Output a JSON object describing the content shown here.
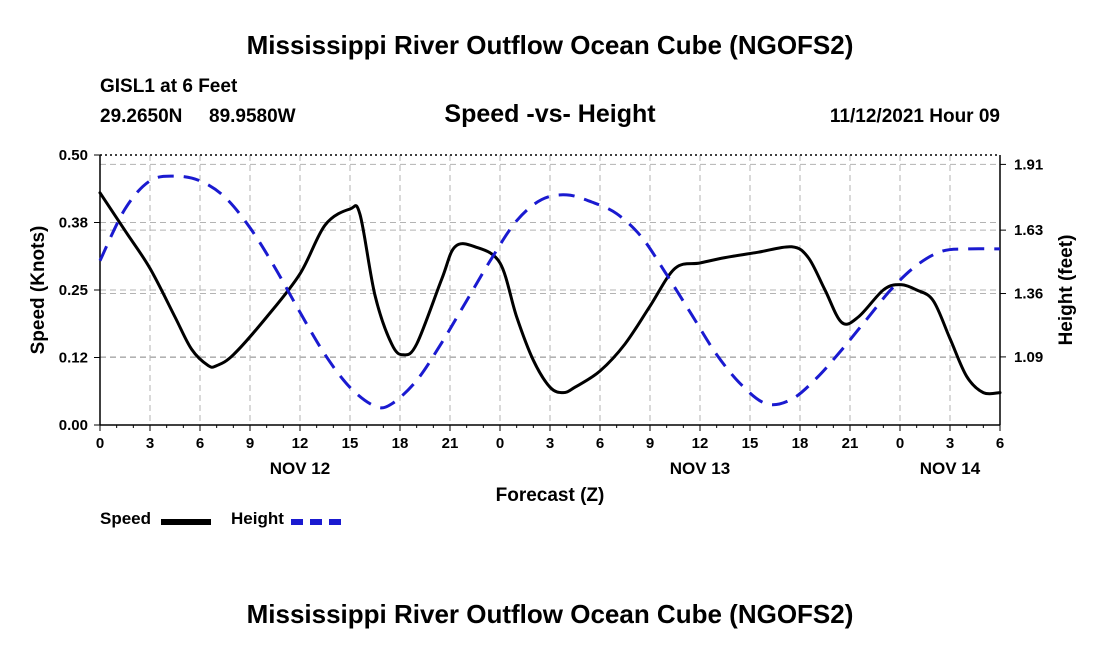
{
  "page_title": "Mississippi River Outflow Ocean Cube (NGOFS2)",
  "station": {
    "name": "GISL1 at 6 Feet",
    "lat": "29.2650N",
    "lon": "89.9580W"
  },
  "timestamp": "11/12/2021 Hour 09",
  "chart_data": {
    "type": "line",
    "title": "Speed -vs- Height",
    "xlabel": "Forecast (Z)",
    "ylabel_left": "Speed (Knots)",
    "ylabel_right": "Height (feet)",
    "x_range_hours": [
      0,
      54
    ],
    "x_tick_labels": [
      "0",
      "3",
      "6",
      "9",
      "12",
      "15",
      "18",
      "21",
      "0",
      "3",
      "6",
      "9",
      "12",
      "15",
      "18",
      "21",
      "0",
      "3",
      "6"
    ],
    "date_labels": [
      {
        "label": "NOV 12",
        "hour": 12
      },
      {
        "label": "NOV 13",
        "hour": 36
      },
      {
        "label": "NOV 14",
        "hour": 51
      }
    ],
    "ylim_left": [
      0,
      0.5
    ],
    "yticks_left": [
      "0.00",
      "0.12",
      "0.25",
      "0.38",
      "0.50"
    ],
    "ylim_right": [
      0.8,
      1.95
    ],
    "yticks_right": [
      "1.09",
      "1.36",
      "1.63",
      "1.91"
    ],
    "grid": true,
    "series": [
      {
        "name": "Speed",
        "axis": "left",
        "color": "#000000",
        "style": "solid",
        "x": [
          0,
          1.5,
          3,
          4.5,
          5.5,
          6.5,
          7,
          8,
          10,
          12,
          13.5,
          15,
          15.6,
          16.5,
          17.5,
          18.2,
          19,
          20.5,
          21.3,
          22.5,
          24,
          25,
          26,
          27,
          27.8,
          28.5,
          30,
          31.5,
          33,
          34.5,
          36,
          37.5,
          39.5,
          41.5,
          42.5,
          43.5,
          44.5,
          45.5,
          47,
          48,
          49,
          50,
          51,
          52,
          53,
          54
        ],
        "values": [
          0.43,
          0.36,
          0.29,
          0.2,
          0.14,
          0.11,
          0.11,
          0.13,
          0.2,
          0.28,
          0.37,
          0.4,
          0.39,
          0.24,
          0.15,
          0.13,
          0.15,
          0.27,
          0.33,
          0.33,
          0.3,
          0.2,
          0.12,
          0.07,
          0.06,
          0.07,
          0.1,
          0.15,
          0.22,
          0.29,
          0.3,
          0.31,
          0.32,
          0.33,
          0.31,
          0.25,
          0.19,
          0.2,
          0.25,
          0.26,
          0.25,
          0.23,
          0.16,
          0.09,
          0.06,
          0.06
        ]
      },
      {
        "name": "Height",
        "axis": "right",
        "color": "#1a1ad0",
        "style": "dashed",
        "x": [
          0,
          1.5,
          3,
          4.5,
          6,
          7.5,
          9,
          10.5,
          12,
          13.5,
          15,
          16.5,
          17.5,
          19,
          20.5,
          22,
          23.5,
          25,
          26.5,
          28,
          29.5,
          31,
          32.5,
          34,
          35.5,
          37,
          38.5,
          40,
          41.5,
          43,
          44.5,
          46,
          47.5,
          49,
          50.5,
          52,
          54
        ],
        "values": [
          1.5,
          1.72,
          1.84,
          1.86,
          1.84,
          1.77,
          1.64,
          1.47,
          1.28,
          1.1,
          0.96,
          0.88,
          0.89,
          0.99,
          1.15,
          1.33,
          1.51,
          1.67,
          1.76,
          1.78,
          1.75,
          1.7,
          1.6,
          1.44,
          1.27,
          1.1,
          0.97,
          0.89,
          0.91,
          1.0,
          1.12,
          1.25,
          1.38,
          1.48,
          1.54,
          1.55,
          1.55
        ]
      }
    ],
    "legend": [
      {
        "label": "Speed",
        "color": "#000000"
      },
      {
        "label": "Height",
        "color": "#1a1ad0"
      }
    ],
    "legend_placement": "bottom-left"
  }
}
